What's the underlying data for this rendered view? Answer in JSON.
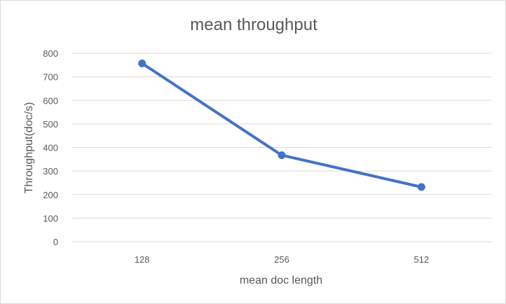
{
  "chart_data": {
    "type": "line",
    "title": "mean throughput",
    "xlabel": "mean doc length",
    "ylabel": "Throughput(doc/s)",
    "categories": [
      "128",
      "256",
      "512"
    ],
    "series": [
      {
        "values": [
          757,
          367,
          232
        ]
      }
    ],
    "ylim": [
      0,
      800
    ],
    "yticks": [
      0,
      100,
      200,
      300,
      400,
      500,
      600,
      700,
      800
    ],
    "grid": true,
    "legend": "none",
    "colors": {
      "series": "#4472C4",
      "grid": "#D9D9D9",
      "text": "#595959"
    }
  }
}
